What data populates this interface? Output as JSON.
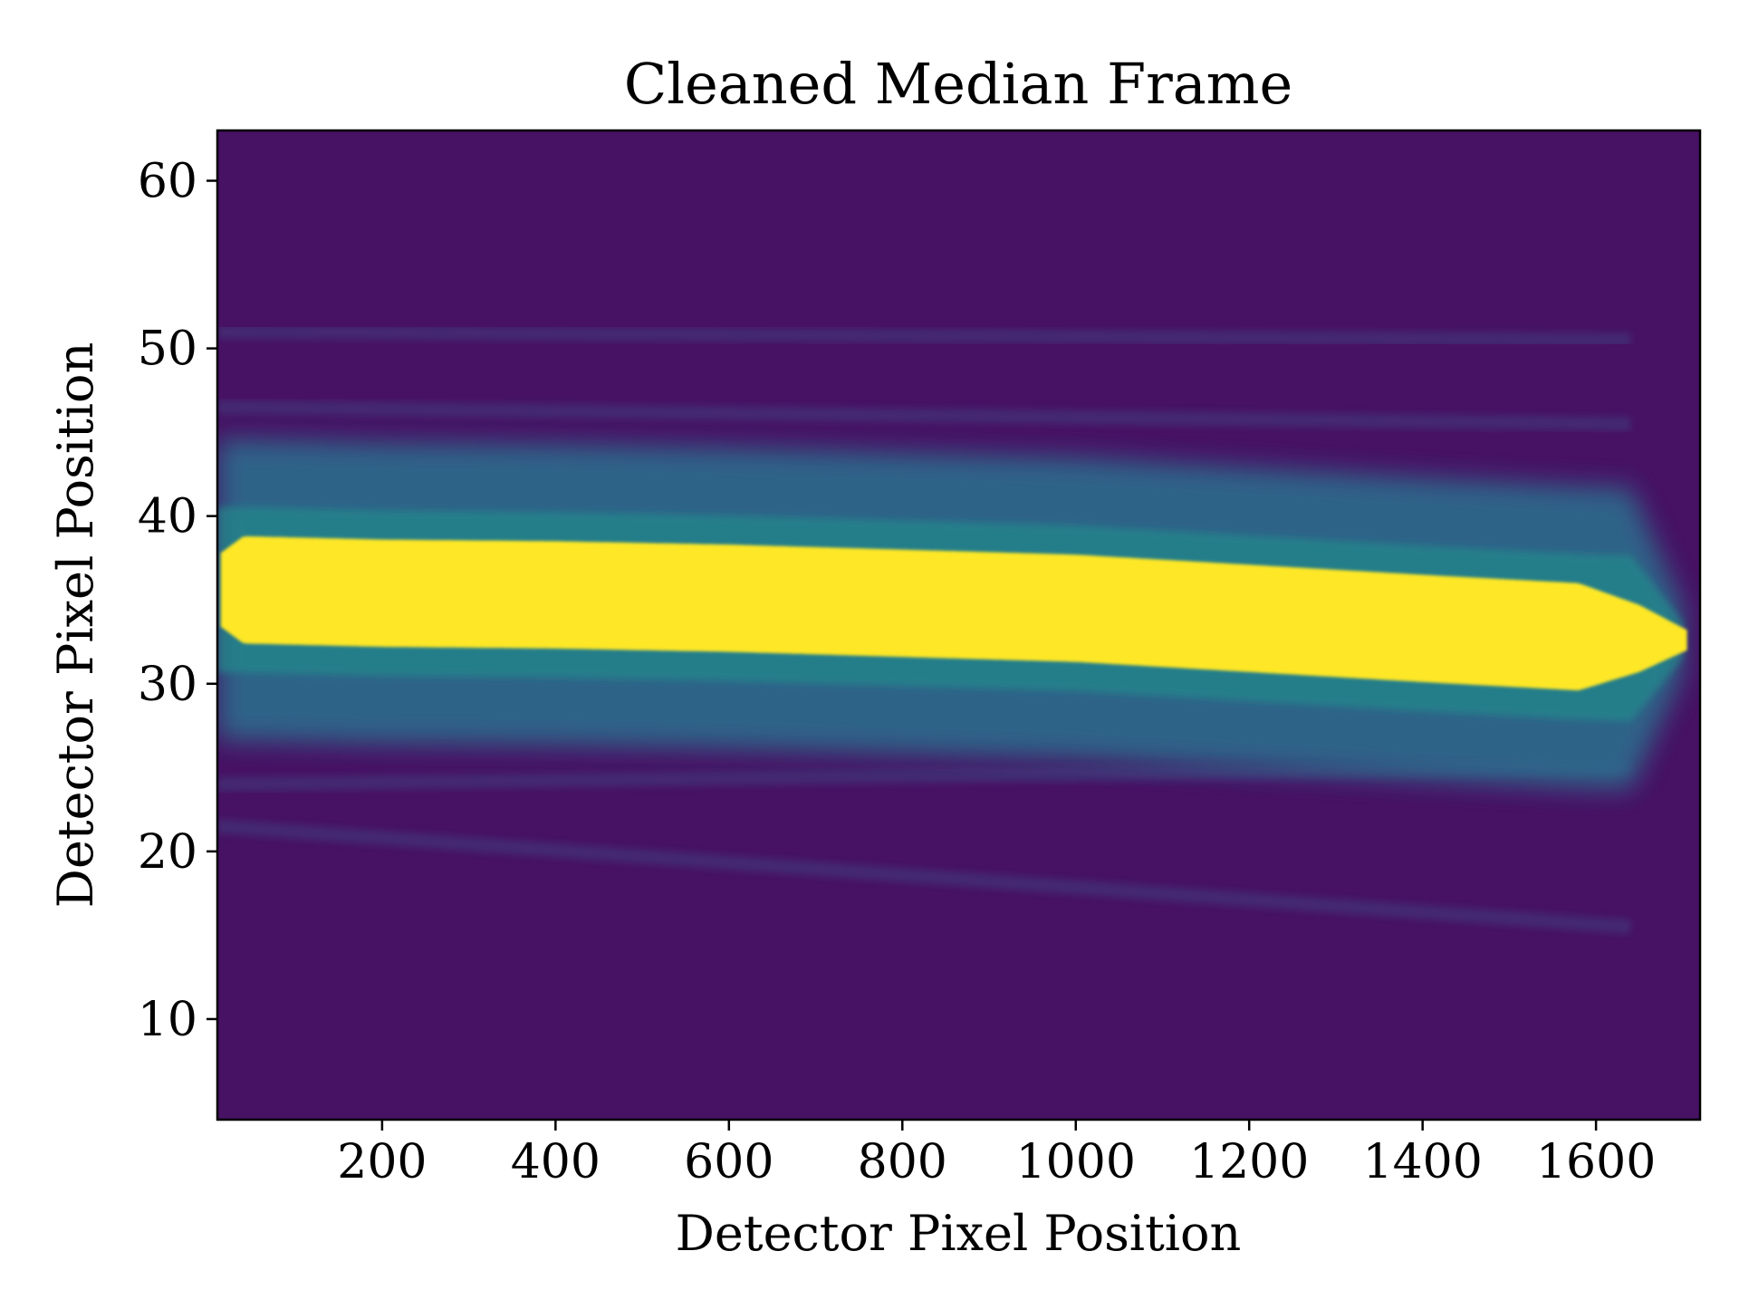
{
  "chart_data": {
    "type": "heatmap",
    "title": "Cleaned Median Frame",
    "xlabel": "Detector Pixel Position",
    "ylabel": "Detector Pixel Position",
    "xlim": [
      10,
      1720
    ],
    "ylim": [
      4,
      63
    ],
    "xticks": [
      200,
      400,
      600,
      800,
      1000,
      1200,
      1400,
      1600
    ],
    "yticks": [
      10,
      20,
      30,
      40,
      50,
      60
    ],
    "colormap": "viridis",
    "background_color": "#471164",
    "trace_color": "#fde725",
    "halo_color": "#2c728e",
    "trace": {
      "x": [
        14,
        40,
        200,
        400,
        600,
        800,
        1000,
        1200,
        1400,
        1580,
        1650,
        1705
      ],
      "center": [
        35.6,
        35.6,
        35.4,
        35.3,
        35.1,
        34.8,
        34.5,
        33.9,
        33.3,
        32.8,
        32.7,
        32.6
      ],
      "half_width": [
        2.2,
        3.2,
        3.2,
        3.2,
        3.2,
        3.2,
        3.2,
        3.2,
        3.2,
        3.2,
        2.0,
        0.6
      ]
    },
    "halo": {
      "x": [
        10,
        1640,
        1700
      ],
      "half_width": [
        9.0,
        9.0,
        2.0
      ]
    },
    "faint_streaks": [
      {
        "x": [
          10,
          1640
        ],
        "y": [
          51.0,
          50.5
        ]
      },
      {
        "x": [
          10,
          1640
        ],
        "y": [
          46.5,
          45.5
        ]
      },
      {
        "x": [
          10,
          1640
        ],
        "y": [
          24.0,
          25.0
        ]
      },
      {
        "x": [
          10,
          1640
        ],
        "y": [
          21.5,
          15.5
        ]
      }
    ]
  }
}
